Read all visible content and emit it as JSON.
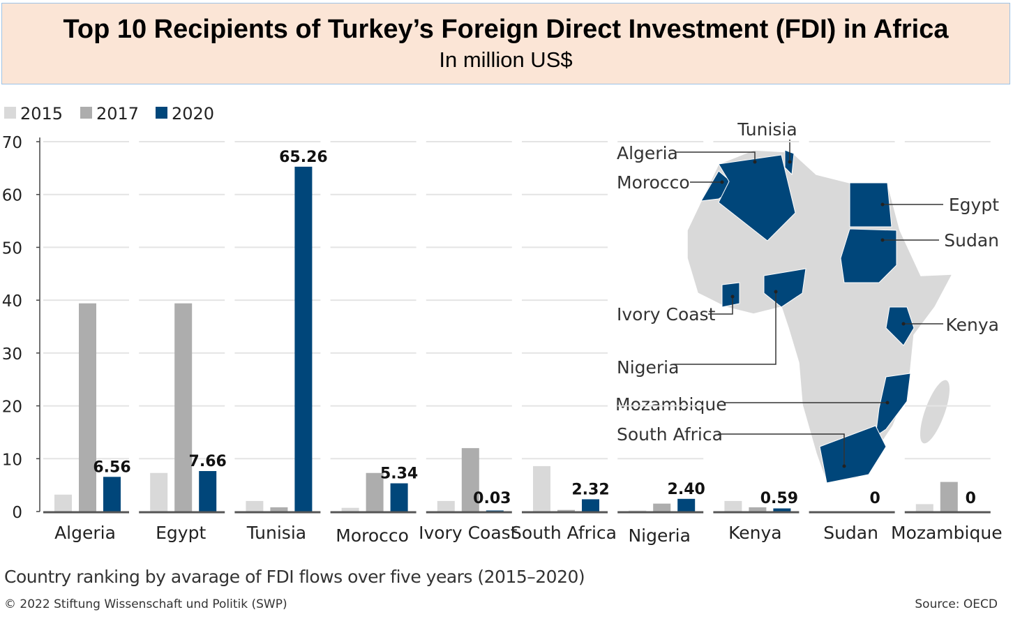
{
  "title": "Top 10 Recipients of Turkey’s Foreign Direct Investment (FDI) in  Africa",
  "subtitle": "In million US$",
  "colors": {
    "2015": "#d9d9d9",
    "2017": "#adadad",
    "2020": "#00467a",
    "map_base": "#d9d9d9",
    "title_bg": "#fbe5d6"
  },
  "chart_data": {
    "type": "bar",
    "categories": [
      "Algeria",
      "Egypt",
      "Tunisia",
      "Morocco",
      "Ivory Coast",
      "South Africa",
      "Nigeria",
      "Kenya",
      "Sudan",
      "Mozambique"
    ],
    "series": [
      {
        "name": "2015",
        "values": [
          3.2,
          7.3,
          2.0,
          0.7,
          2.0,
          8.6,
          0.2,
          2.0,
          0,
          1.4
        ]
      },
      {
        "name": "2017",
        "values": [
          39.4,
          39.4,
          0.8,
          7.3,
          12.0,
          0.3,
          1.5,
          0.8,
          0,
          5.6
        ]
      },
      {
        "name": "2020",
        "values": [
          6.56,
          7.66,
          65.26,
          5.34,
          0.03,
          2.32,
          2.4,
          0.59,
          0,
          0
        ]
      }
    ],
    "data_labels_2020": [
      "6.56",
      "7.66",
      "65.26",
      "5.34",
      "0.03",
      "2.32",
      "2.40",
      "0.59",
      "0",
      "0"
    ],
    "ylim": [
      0,
      70
    ],
    "yticks": [
      "0",
      "10",
      "20",
      "30",
      "40",
      "50",
      "60",
      "70"
    ],
    "grid": true,
    "legend_position": "top-left"
  },
  "map": {
    "labels": [
      "Tunisia",
      "Algeria",
      "Morocco",
      "Egypt",
      "Sudan",
      "Ivory Coast",
      "Nigeria",
      "Kenya",
      "Mozambique",
      "South Africa"
    ]
  },
  "footer": {
    "note": "Country ranking by avarage of FDI flows over five years (2015–2020)",
    "copyright": "© 2022 Stiftung Wissenschaft und Politik (SWP)",
    "source": "Source: OECD"
  }
}
